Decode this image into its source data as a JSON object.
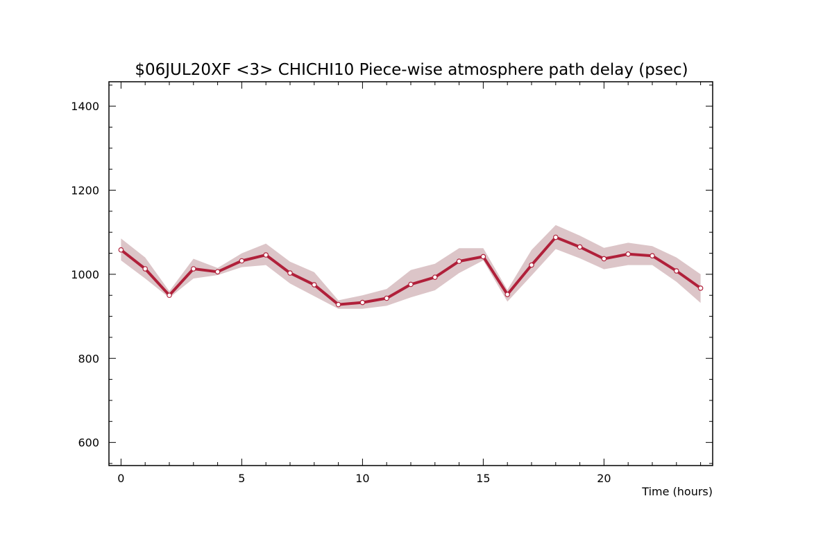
{
  "chart_data": {
    "type": "line",
    "title": "$06JUL20XF <3>  CHICHI10  Piece-wise atmosphere path delay (psec)",
    "xlabel": "Time (hours)",
    "ylabel": "",
    "xlim": [
      -0.5,
      24.5
    ],
    "ylim": [
      545,
      1458
    ],
    "x_ticks": [
      0,
      5,
      10,
      15,
      20
    ],
    "y_ticks": [
      600,
      800,
      1000,
      1200,
      1400
    ],
    "grid": false,
    "colors": {
      "line": "#b0203a",
      "band": "#dcc5c8",
      "marker_fill": "#ffffff",
      "axes": "#000000"
    },
    "series": [
      {
        "x": [
          0,
          1,
          2,
          3,
          4,
          5,
          6,
          7,
          8,
          9,
          10,
          11,
          12,
          13,
          14,
          15,
          16,
          17,
          18,
          19,
          20,
          21,
          22,
          23,
          24
        ],
        "values": [
          1058,
          1013,
          950,
          1013,
          1006,
          1032,
          1046,
          1003,
          975,
          928,
          933,
          943,
          976,
          993,
          1031,
          1042,
          952,
          1022,
          1088,
          1065,
          1037,
          1048,
          1044,
          1008,
          967
        ],
        "upper": [
          1085,
          1040,
          960,
          1037,
          1015,
          1050,
          1073,
          1030,
          1005,
          938,
          950,
          965,
          1010,
          1025,
          1062,
          1062,
          963,
          1058,
          1117,
          1092,
          1063,
          1075,
          1067,
          1040,
          1000
        ],
        "lower": [
          1033,
          990,
          944,
          990,
          998,
          1017,
          1022,
          978,
          948,
          918,
          918,
          925,
          945,
          962,
          1003,
          1033,
          935,
          997,
          1060,
          1038,
          1012,
          1022,
          1022,
          982,
          932
        ]
      }
    ]
  }
}
